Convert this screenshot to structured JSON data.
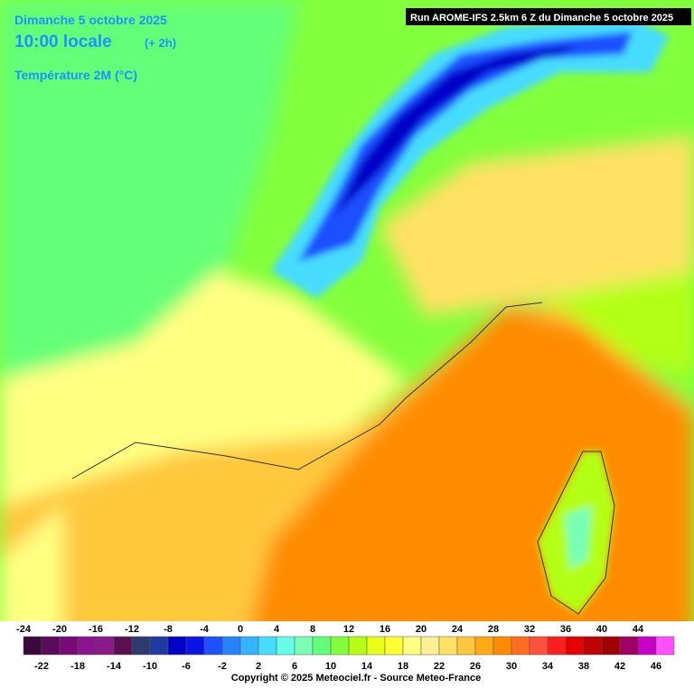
{
  "header": {
    "date": "Dimanche 5 octobre 2025",
    "time": "10:00 locale",
    "offset": "(+ 2h)",
    "parameter": "Température 2M (°C)",
    "run": "Run AROME-IFS 2.5km 6 Z du Dimanche 5 octobre 2025"
  },
  "legend": {
    "stops": [
      {
        "value": -24,
        "color": "#3a0a3a"
      },
      {
        "value": -22,
        "color": "#5a0a5a"
      },
      {
        "value": -20,
        "color": "#780a78"
      },
      {
        "value": -18,
        "color": "#8c148c"
      },
      {
        "value": -16,
        "color": "#8a1a8a"
      },
      {
        "value": -14,
        "color": "#5a1050"
      },
      {
        "value": -12,
        "color": "#2e3a6e"
      },
      {
        "value": -10,
        "color": "#1e3ca0"
      },
      {
        "value": -8,
        "color": "#0000c8"
      },
      {
        "value": -6,
        "color": "#0a14e6"
      },
      {
        "value": -4,
        "color": "#1e50ff"
      },
      {
        "value": -2,
        "color": "#2882ff"
      },
      {
        "value": 0,
        "color": "#32b4ff"
      },
      {
        "value": 2,
        "color": "#46dcff"
      },
      {
        "value": 4,
        "color": "#64ffe6"
      },
      {
        "value": 6,
        "color": "#78ffb4"
      },
      {
        "value": 8,
        "color": "#64ff78"
      },
      {
        "value": 10,
        "color": "#82ff3c"
      },
      {
        "value": 12,
        "color": "#b4ff14"
      },
      {
        "value": 14,
        "color": "#e6ff14"
      },
      {
        "value": 16,
        "color": "#ffff32"
      },
      {
        "value": 18,
        "color": "#ffff82"
      },
      {
        "value": 20,
        "color": "#fff096"
      },
      {
        "value": 22,
        "color": "#ffe164"
      },
      {
        "value": 24,
        "color": "#ffc83c"
      },
      {
        "value": 26,
        "color": "#ffaa14"
      },
      {
        "value": 28,
        "color": "#ff8c00"
      },
      {
        "value": 30,
        "color": "#ff6e1e"
      },
      {
        "value": 32,
        "color": "#ff503c"
      },
      {
        "value": 34,
        "color": "#ff1e1e"
      },
      {
        "value": 36,
        "color": "#e60000"
      },
      {
        "value": 38,
        "color": "#be0000"
      },
      {
        "value": 40,
        "color": "#a00000"
      },
      {
        "value": 42,
        "color": "#a00064"
      },
      {
        "value": 44,
        "color": "#c800c8"
      },
      {
        "value": 46,
        "color": "#ff50ff"
      }
    ]
  },
  "footer": {
    "copyright": "Copyright © 2025 Meteociel.fr - Source Meteo-France"
  }
}
